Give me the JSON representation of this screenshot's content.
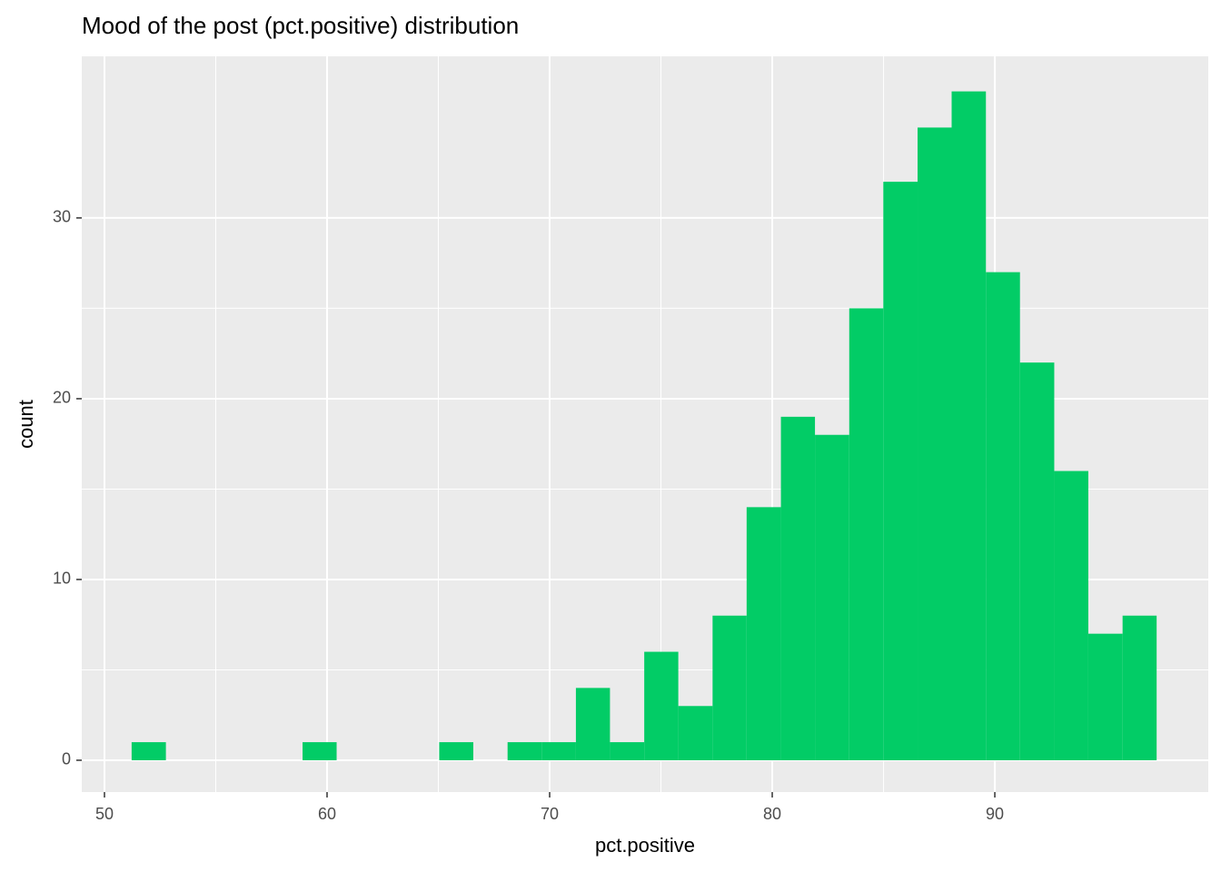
{
  "chart_data": {
    "type": "histogram",
    "title": "Mood of the post (pct.positive) distribution",
    "x_label": "pct.positive",
    "y_label": "count",
    "bins": [
      51.22,
      52.76,
      54.29,
      55.83,
      57.36,
      58.9,
      60.43,
      61.97,
      63.5,
      65.04,
      66.57,
      68.11,
      69.64,
      71.18,
      72.71,
      74.25,
      75.78,
      77.32,
      78.85,
      80.39,
      81.92,
      83.46,
      84.99,
      86.53,
      88.06,
      89.6,
      91.13,
      92.67,
      94.2,
      95.74,
      97.27
    ],
    "values": [
      1,
      0,
      0,
      0,
      0,
      1,
      0,
      0,
      0,
      1,
      0,
      1,
      1,
      4,
      1,
      6,
      3,
      8,
      14,
      19,
      18,
      25,
      32,
      35,
      37,
      27,
      22,
      16,
      7,
      8
    ],
    "color": "#02cc66",
    "xlim": [
      48.98,
      99.59
    ],
    "xticks": [
      50,
      60,
      70,
      80,
      90
    ],
    "ylim": [
      -1.76,
      38.94
    ],
    "yticks": [
      0,
      10,
      20,
      30
    ],
    "grid": true
  }
}
